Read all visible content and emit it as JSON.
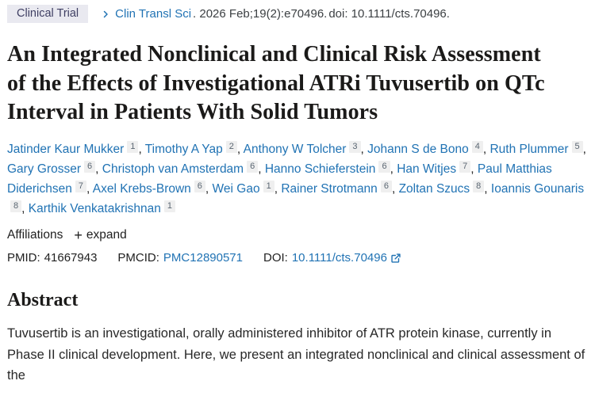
{
  "header": {
    "badge": "Clinical Trial",
    "journal_link": "Clin Transl Sci",
    "citation": ". 2026 Feb;19(2):e70496.",
    "doi_text": "doi: 10.1111/cts.70496."
  },
  "title": "An Integrated Nonclinical and Clinical Risk Assessment of the Effects of Investigational ATRi Tuvusertib on QTc Interval in Patients With Solid Tumors",
  "authors": [
    {
      "name": "Jatinder Kaur Mukker",
      "sup": "1"
    },
    {
      "name": "Timothy A Yap",
      "sup": "2"
    },
    {
      "name": "Anthony W Tolcher",
      "sup": "3"
    },
    {
      "name": "Johann S de Bono",
      "sup": "4"
    },
    {
      "name": "Ruth Plummer",
      "sup": "5"
    },
    {
      "name": "Gary Grosser",
      "sup": "6"
    },
    {
      "name": "Christoph van Amsterdam",
      "sup": "6"
    },
    {
      "name": "Hanno Schieferstein",
      "sup": "6"
    },
    {
      "name": "Han Witjes",
      "sup": "7"
    },
    {
      "name": "Paul Matthias Diderichsen",
      "sup": "7"
    },
    {
      "name": "Axel Krebs-Brown",
      "sup": "6"
    },
    {
      "name": "Wei Gao",
      "sup": "1"
    },
    {
      "name": "Rainer Strotmann",
      "sup": "6"
    },
    {
      "name": "Zoltan Szucs",
      "sup": "8"
    },
    {
      "name": "Ioannis Gounaris",
      "sup": "8"
    },
    {
      "name": "Karthik Venkatakrishnan",
      "sup": "1"
    }
  ],
  "affiliations": {
    "label": "Affiliations",
    "plus": "+",
    "expand_label": "expand"
  },
  "identifiers": {
    "pmid_label": "PMID:",
    "pmid": "41667943",
    "pmcid_label": "PMCID:",
    "pmcid": "PMC12890571",
    "doi_label": "DOI:",
    "doi": "10.1111/cts.70496"
  },
  "abstract": {
    "heading": "Abstract",
    "text": "Tuvusertib is an investigational, orally administered inhibitor of ATR protein kinase, currently in Phase II clinical development. Here, we present an integrated nonclinical and clinical assessment of the"
  },
  "colors": {
    "link_blue": "#2173b4",
    "badge_bg": "#e9e9f0",
    "badge_text": "#3f3f63",
    "sup_bg": "#efefef",
    "text_dark": "#212121"
  }
}
